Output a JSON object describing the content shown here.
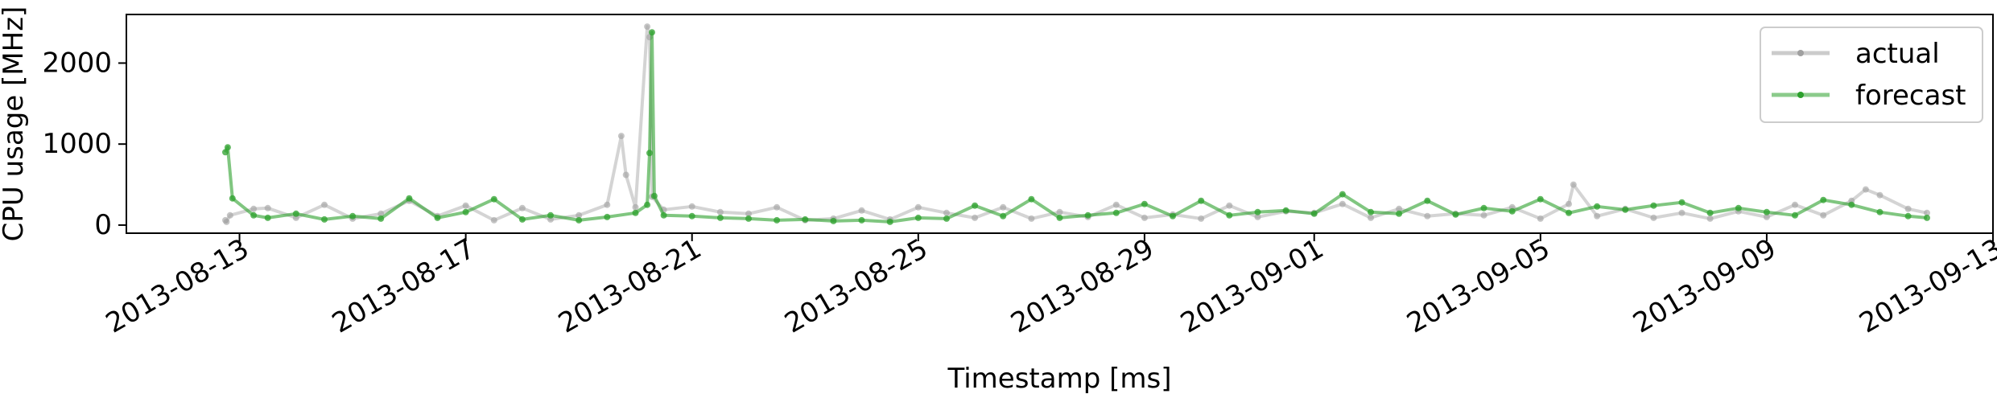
{
  "chart_data": {
    "type": "line",
    "title": "",
    "xlabel": "Timestamp [ms]",
    "ylabel": "CPU usage [MHz]",
    "xlim": [
      "2013-08-11T00:00",
      "2013-09-13T00:00"
    ],
    "ylim": [
      -100,
      2600
    ],
    "x_ticks": [
      {
        "date": "2013-08-13",
        "label": "2013-08-13"
      },
      {
        "date": "2013-08-17",
        "label": "2013-08-17"
      },
      {
        "date": "2013-08-21",
        "label": "2013-08-21"
      },
      {
        "date": "2013-08-25",
        "label": "2013-08-25"
      },
      {
        "date": "2013-08-29",
        "label": "2013-08-29"
      },
      {
        "date": "2013-09-01",
        "label": "2013-09-01"
      },
      {
        "date": "2013-09-05",
        "label": "2013-09-05"
      },
      {
        "date": "2013-09-09",
        "label": "2013-09-09"
      },
      {
        "date": "2013-09-13",
        "label": "2013-09-13"
      }
    ],
    "y_ticks": [
      0,
      1000,
      2000
    ],
    "grid": false,
    "legend_position": "top-right",
    "series": [
      {
        "name": "actual",
        "color": "#a0a0a0",
        "x": [
          "2013-08-12T18:00",
          "2013-08-12T18:30",
          "2013-08-12T20:00",
          "2013-08-13T06:00",
          "2013-08-13T12:00",
          "2013-08-14T00:00",
          "2013-08-14T12:00",
          "2013-08-15T00:00",
          "2013-08-15T12:00",
          "2013-08-16T00:00",
          "2013-08-16T12:00",
          "2013-08-17T00:00",
          "2013-08-17T12:00",
          "2013-08-18T00:00",
          "2013-08-18T12:00",
          "2013-08-19T00:00",
          "2013-08-19T12:00",
          "2013-08-19T18:00",
          "2013-08-19T20:00",
          "2013-08-20T00:00",
          "2013-08-20T05:00",
          "2013-08-20T06:00",
          "2013-08-20T07:00",
          "2013-08-20T12:00",
          "2013-08-21T00:00",
          "2013-08-21T12:00",
          "2013-08-22T00:00",
          "2013-08-22T12:00",
          "2013-08-23T00:00",
          "2013-08-23T12:00",
          "2013-08-24T00:00",
          "2013-08-24T12:00",
          "2013-08-25T00:00",
          "2013-08-25T12:00",
          "2013-08-26T00:00",
          "2013-08-26T12:00",
          "2013-08-27T00:00",
          "2013-08-27T12:00",
          "2013-08-28T00:00",
          "2013-08-28T12:00",
          "2013-08-29T00:00",
          "2013-08-29T12:00",
          "2013-08-30T00:00",
          "2013-08-30T12:00",
          "2013-08-31T00:00",
          "2013-08-31T12:00",
          "2013-09-01T00:00",
          "2013-09-01T12:00",
          "2013-09-02T00:00",
          "2013-09-02T12:00",
          "2013-09-03T00:00",
          "2013-09-03T12:00",
          "2013-09-04T00:00",
          "2013-09-04T12:00",
          "2013-09-05T00:00",
          "2013-09-05T12:00",
          "2013-09-05T14:00",
          "2013-09-06T00:00",
          "2013-09-06T12:00",
          "2013-09-07T00:00",
          "2013-09-07T12:00",
          "2013-09-08T00:00",
          "2013-09-08T12:00",
          "2013-09-09T00:00",
          "2013-09-09T12:00",
          "2013-09-10T00:00",
          "2013-09-10T12:00",
          "2013-09-10T18:00",
          "2013-09-11T00:00",
          "2013-09-11T12:00",
          "2013-09-11T20:00"
        ],
        "y": [
          60,
          40,
          120,
          200,
          210,
          90,
          250,
          80,
          140,
          300,
          110,
          240,
          60,
          210,
          70,
          120,
          250,
          1100,
          620,
          220,
          2450,
          2320,
          350,
          190,
          230,
          160,
          140,
          220,
          60,
          80,
          180,
          70,
          220,
          150,
          90,
          220,
          80,
          160,
          100,
          250,
          90,
          130,
          80,
          240,
          100,
          170,
          150,
          260,
          90,
          200,
          110,
          140,
          120,
          220,
          80,
          260,
          500,
          110,
          200,
          90,
          150,
          80,
          170,
          100,
          250,
          120,
          300,
          440,
          370,
          200,
          150
        ]
      },
      {
        "name": "forecast",
        "color": "#2ca02c",
        "x": [
          "2013-08-12T18:00",
          "2013-08-12T19:00",
          "2013-08-12T21:00",
          "2013-08-13T06:00",
          "2013-08-13T12:00",
          "2013-08-14T00:00",
          "2013-08-14T12:00",
          "2013-08-15T00:00",
          "2013-08-15T12:00",
          "2013-08-16T00:00",
          "2013-08-16T12:00",
          "2013-08-17T00:00",
          "2013-08-17T12:00",
          "2013-08-18T00:00",
          "2013-08-18T12:00",
          "2013-08-19T00:00",
          "2013-08-19T12:00",
          "2013-08-20T00:00",
          "2013-08-20T05:00",
          "2013-08-20T06:00",
          "2013-08-20T07:00",
          "2013-08-20T08:00",
          "2013-08-20T12:00",
          "2013-08-21T00:00",
          "2013-08-21T12:00",
          "2013-08-22T00:00",
          "2013-08-22T12:00",
          "2013-08-23T00:00",
          "2013-08-23T12:00",
          "2013-08-24T00:00",
          "2013-08-24T12:00",
          "2013-08-25T00:00",
          "2013-08-25T12:00",
          "2013-08-26T00:00",
          "2013-08-26T12:00",
          "2013-08-27T00:00",
          "2013-08-27T12:00",
          "2013-08-28T00:00",
          "2013-08-28T12:00",
          "2013-08-29T00:00",
          "2013-08-29T12:00",
          "2013-08-30T00:00",
          "2013-08-30T12:00",
          "2013-08-31T00:00",
          "2013-08-31T12:00",
          "2013-09-01T00:00",
          "2013-09-01T12:00",
          "2013-09-02T00:00",
          "2013-09-02T12:00",
          "2013-09-03T00:00",
          "2013-09-03T12:00",
          "2013-09-04T00:00",
          "2013-09-04T12:00",
          "2013-09-05T00:00",
          "2013-09-05T12:00",
          "2013-09-06T00:00",
          "2013-09-06T12:00",
          "2013-09-07T00:00",
          "2013-09-07T12:00",
          "2013-09-08T00:00",
          "2013-09-08T12:00",
          "2013-09-09T00:00",
          "2013-09-09T12:00",
          "2013-09-10T00:00",
          "2013-09-10T12:00",
          "2013-09-11T00:00",
          "2013-09-11T12:00",
          "2013-09-11T20:00"
        ],
        "y": [
          900,
          960,
          330,
          120,
          90,
          140,
          70,
          110,
          80,
          330,
          90,
          160,
          320,
          70,
          120,
          60,
          100,
          150,
          250,
          890,
          2380,
          360,
          120,
          110,
          90,
          80,
          60,
          70,
          50,
          60,
          40,
          90,
          80,
          240,
          110,
          320,
          90,
          120,
          150,
          260,
          110,
          300,
          120,
          160,
          180,
          140,
          380,
          160,
          140,
          300,
          130,
          210,
          170,
          320,
          150,
          230,
          190,
          240,
          280,
          150,
          210,
          160,
          120,
          310,
          250,
          160,
          110,
          90
        ]
      }
    ]
  }
}
